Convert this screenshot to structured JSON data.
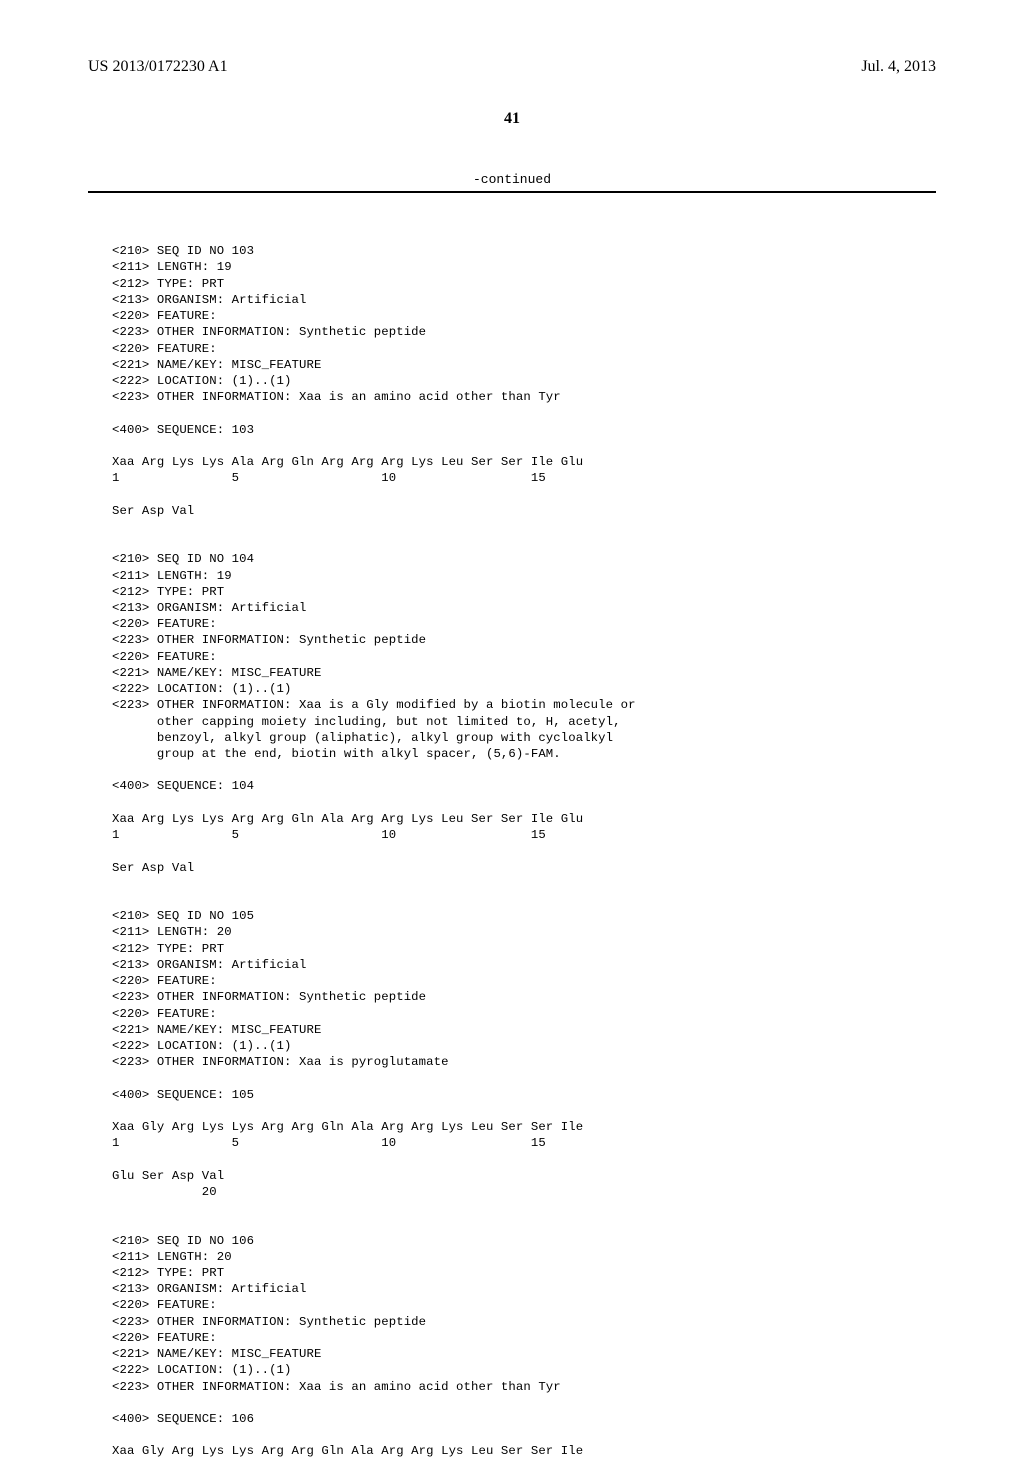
{
  "header": {
    "publication_number": "US 2013/0172230 A1",
    "publication_date": "Jul. 4, 2013"
  },
  "page_number": "41",
  "continued_label": "-continued",
  "sequences": {
    "seq103": {
      "header": "<210> SEQ ID NO 103\n<211> LENGTH: 19\n<212> TYPE: PRT\n<213> ORGANISM: Artificial\n<220> FEATURE:\n<223> OTHER INFORMATION: Synthetic peptide\n<220> FEATURE:\n<221> NAME/KEY: MISC_FEATURE\n<222> LOCATION: (1)..(1)\n<223> OTHER INFORMATION: Xaa is an amino acid other than Tyr\n\n<400> SEQUENCE: 103",
      "line1": "Xaa Arg Lys Lys Ala Arg Gln Arg Arg Arg Lys Leu Ser Ser Ile Glu",
      "nums1": "1               5                   10                  15",
      "line2": "Ser Asp Val"
    },
    "seq104": {
      "header": "<210> SEQ ID NO 104\n<211> LENGTH: 19\n<212> TYPE: PRT\n<213> ORGANISM: Artificial\n<220> FEATURE:\n<223> OTHER INFORMATION: Synthetic peptide\n<220> FEATURE:\n<221> NAME/KEY: MISC_FEATURE\n<222> LOCATION: (1)..(1)\n<223> OTHER INFORMATION: Xaa is a Gly modified by a biotin molecule or\n      other capping moiety including, but not limited to, H, acetyl,\n      benzoyl, alkyl group (aliphatic), alkyl group with cycloalkyl\n      group at the end, biotin with alkyl spacer, (5,6)-FAM.\n\n<400> SEQUENCE: 104",
      "line1": "Xaa Arg Lys Lys Arg Arg Gln Ala Arg Arg Lys Leu Ser Ser Ile Glu",
      "nums1": "1               5                   10                  15",
      "line2": "Ser Asp Val"
    },
    "seq105": {
      "header": "<210> SEQ ID NO 105\n<211> LENGTH: 20\n<212> TYPE: PRT\n<213> ORGANISM: Artificial\n<220> FEATURE:\n<223> OTHER INFORMATION: Synthetic peptide\n<220> FEATURE:\n<221> NAME/KEY: MISC_FEATURE\n<222> LOCATION: (1)..(1)\n<223> OTHER INFORMATION: Xaa is pyroglutamate\n\n<400> SEQUENCE: 105",
      "line1": "Xaa Gly Arg Lys Lys Arg Arg Gln Ala Arg Arg Lys Leu Ser Ser Ile",
      "nums1": "1               5                   10                  15",
      "line2": "Glu Ser Asp Val",
      "nums2": "            20"
    },
    "seq106": {
      "header": "<210> SEQ ID NO 106\n<211> LENGTH: 20\n<212> TYPE: PRT\n<213> ORGANISM: Artificial\n<220> FEATURE:\n<223> OTHER INFORMATION: Synthetic peptide\n<220> FEATURE:\n<221> NAME/KEY: MISC_FEATURE\n<222> LOCATION: (1)..(1)\n<223> OTHER INFORMATION: Xaa is an amino acid other than Tyr\n\n<400> SEQUENCE: 106",
      "line1": "Xaa Gly Arg Lys Lys Arg Arg Gln Ala Arg Arg Lys Leu Ser Ser Ile"
    }
  }
}
